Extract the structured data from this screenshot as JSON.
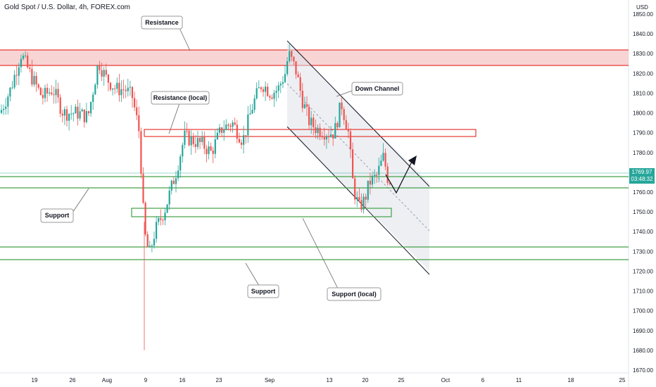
{
  "header": {
    "title": "Gold Spot / U.S. Dollar, 4h, FOREX.com",
    "currency": "USD"
  },
  "price_tag": {
    "price": "1769.97",
    "countdown": "03:48:32",
    "color": "#26a69a"
  },
  "colors": {
    "up": "#26a69a",
    "down": "#ef5350",
    "resistance": "#e53935",
    "support": "#43a047",
    "channel": "#131722"
  },
  "chart_data": {
    "type": "candlestick",
    "symbol": "Gold Spot / U.S. Dollar",
    "timeframe": "4h",
    "source": "FOREX.com",
    "ylim": [
      1666,
      1857
    ],
    "y_ticks": [
      "1850.00",
      "1840.00",
      "1830.00",
      "1820.00",
      "1810.00",
      "1800.00",
      "1790.00",
      "1780.00",
      "1770.00",
      "1760.00",
      "1750.00",
      "1740.00",
      "1730.00",
      "1720.00",
      "1710.00",
      "1700.00",
      "1690.00",
      "1680.00",
      "1670.00"
    ],
    "x_ticks": [
      "19",
      "26",
      "Aug",
      "9",
      "16",
      "23",
      "Sep",
      "13",
      "20",
      "25",
      "Oct",
      "6",
      "11",
      "18",
      "25"
    ],
    "price_path": [
      [
        0,
        1800
      ],
      [
        15,
        1812
      ],
      [
        30,
        1830
      ],
      [
        45,
        1818
      ],
      [
        60,
        1808
      ],
      [
        75,
        1812
      ],
      [
        90,
        1800
      ],
      [
        110,
        1800
      ],
      [
        125,
        1798
      ],
      [
        140,
        1826
      ],
      [
        150,
        1818
      ],
      [
        165,
        1812
      ],
      [
        178,
        1812
      ],
      [
        188,
        1808
      ],
      [
        198,
        1790
      ],
      [
        205,
        1740
      ],
      [
        212,
        1728
      ],
      [
        220,
        1740
      ],
      [
        235,
        1752
      ],
      [
        250,
        1770
      ],
      [
        262,
        1788
      ],
      [
        275,
        1786
      ],
      [
        288,
        1784
      ],
      [
        300,
        1780
      ],
      [
        315,
        1792
      ],
      [
        330,
        1795
      ],
      [
        345,
        1786
      ],
      [
        360,
        1805
      ],
      [
        372,
        1815
      ],
      [
        385,
        1810
      ],
      [
        395,
        1812
      ],
      [
        405,
        1820
      ],
      [
        410,
        1830
      ],
      [
        420,
        1822
      ],
      [
        430,
        1806
      ],
      [
        440,
        1795
      ],
      [
        450,
        1792
      ],
      [
        465,
        1790
      ],
      [
        475,
        1790
      ],
      [
        485,
        1805
      ],
      [
        495,
        1790
      ],
      [
        502,
        1762
      ],
      [
        510,
        1752
      ],
      [
        518,
        1756
      ],
      [
        525,
        1765
      ],
      [
        535,
        1768
      ],
      [
        545,
        1778
      ],
      [
        552,
        1765
      ],
      [
        560,
        1770
      ]
    ],
    "zones": [
      {
        "name": "Resistance",
        "low": 1824,
        "high": 1832,
        "color": "#e53935"
      },
      {
        "name": "Resistance (local)",
        "low": 1788,
        "high": 1791.5,
        "color": "#e53935"
      },
      {
        "name": "Support (local)",
        "low": 1747,
        "high": 1751.5,
        "color": "#43a047"
      },
      {
        "name": "Support",
        "low": 1762,
        "high": 1768,
        "color": "#43a047"
      },
      {
        "name": "Support",
        "low": 1726,
        "high": 1732.5,
        "color": "#43a047"
      }
    ],
    "annotations": [
      "Resistance",
      "Resistance (local)",
      "Down Channel",
      "Support",
      "Support",
      "Support (local)"
    ]
  }
}
